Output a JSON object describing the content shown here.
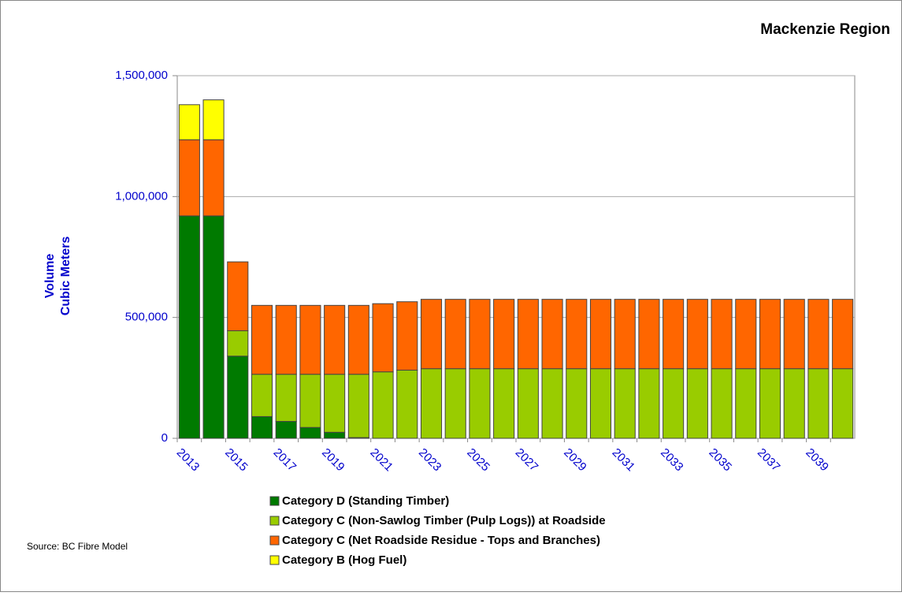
{
  "chart_data": {
    "type": "stacked_bar",
    "title": "Mackenzie Region",
    "ylabel": [
      "Volume",
      "Cubic Meters"
    ],
    "source": "Source: BC Fibre Model",
    "categories": [
      "2013",
      null,
      "2015",
      null,
      "2017",
      null,
      "2019",
      null,
      "2021",
      null,
      "2023",
      null,
      "2025",
      null,
      "2027",
      null,
      "2029",
      null,
      "2031",
      null,
      "2033",
      null,
      "2035",
      null,
      "2037",
      null,
      "2039",
      null
    ],
    "series": [
      {
        "name": "Category D (Standing Timber)",
        "color": "#007a00",
        "values": [
          920000,
          920000,
          340000,
          90000,
          70000,
          45000,
          25000,
          3000,
          0,
          0,
          0,
          0,
          0,
          0,
          0,
          0,
          0,
          0,
          0,
          0,
          0,
          0,
          0,
          0,
          0,
          0,
          0,
          0
        ]
      },
      {
        "name": "Category C (Non-Sawlog Timber (Pulp Logs)) at Roadside",
        "color": "#99cc00",
        "values": [
          0,
          0,
          105000,
          175000,
          195000,
          220000,
          240000,
          262000,
          275000,
          282000,
          288000,
          288000,
          288000,
          288000,
          288000,
          288000,
          288000,
          288000,
          288000,
          288000,
          288000,
          288000,
          288000,
          288000,
          288000,
          288000,
          288000,
          288000
        ]
      },
      {
        "name": "Category C (Net Roadside Residue - Tops and Branches)",
        "color": "#ff6600",
        "values": [
          315000,
          315000,
          285000,
          285000,
          285000,
          285000,
          285000,
          285000,
          282000,
          283000,
          287000,
          287000,
          287000,
          287000,
          287000,
          287000,
          287000,
          287000,
          287000,
          287000,
          287000,
          287000,
          287000,
          287000,
          287000,
          287000,
          287000,
          287000
        ]
      },
      {
        "name": "Category B (Hog Fuel)",
        "color": "#ffff00",
        "values": [
          145000,
          165000,
          0,
          0,
          0,
          0,
          0,
          0,
          0,
          0,
          0,
          0,
          0,
          0,
          0,
          0,
          0,
          0,
          0,
          0,
          0,
          0,
          0,
          0,
          0,
          0,
          0,
          0
        ]
      }
    ],
    "ylim": [
      0,
      1500000
    ],
    "yticks": [
      0,
      {
        "value": 500000,
        "label": "500,000"
      },
      {
        "value": 1000000,
        "label": "1,000,000"
      },
      {
        "value": 1500000,
        "label": "1,500,000"
      }
    ],
    "grid": true
  }
}
